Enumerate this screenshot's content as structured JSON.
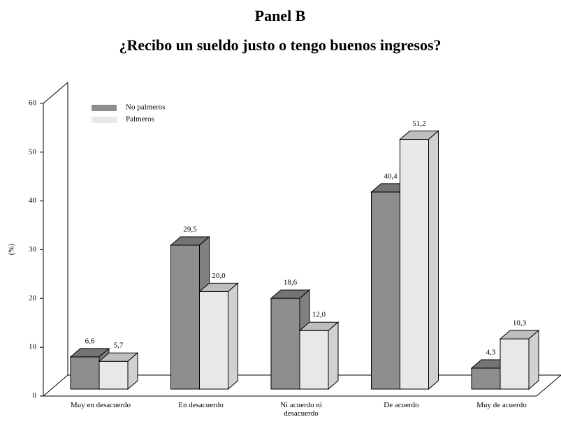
{
  "chart_data": {
    "type": "bar3d",
    "title": "Panel B",
    "subtitle": "¿Recibo un sueldo justo o tengo buenos ingresos?",
    "ylabel": "(%)",
    "categories": [
      "Muy en desacuerdo",
      "En desacuerdo",
      "Ni acuerdo ni desacuerdo",
      "De acuerdo",
      "Muy de acuerdo"
    ],
    "series": [
      {
        "name": "No palmeros",
        "color": "#8e8e8e",
        "values": [
          6.6,
          29.5,
          18.6,
          40.4,
          4.3
        ],
        "value_labels": [
          "6,6",
          "29,5",
          "18,6",
          "40,4",
          "4,3"
        ]
      },
      {
        "name": "Palmeros",
        "color": "#e8e8e8",
        "values": [
          5.7,
          20.0,
          12.0,
          51.2,
          10.3
        ],
        "value_labels": [
          "5,7",
          "20,0",
          "12,0",
          "51,2",
          "10,3"
        ]
      }
    ],
    "ylim": [
      0,
      60
    ],
    "yticks": [
      0,
      10,
      20,
      30,
      40,
      50,
      60
    ],
    "grid": false,
    "legend": "upper left"
  }
}
